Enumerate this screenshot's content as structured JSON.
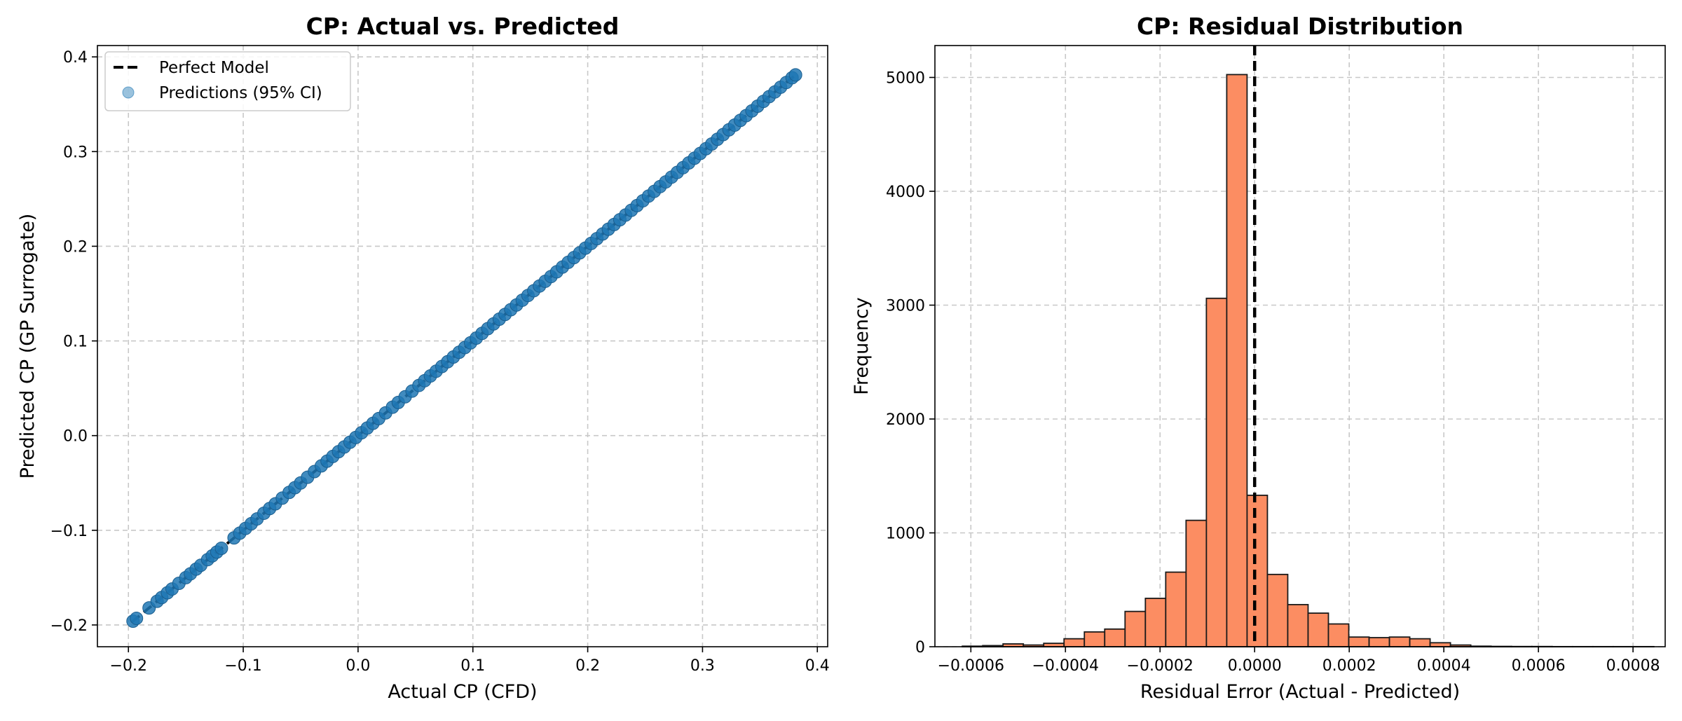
{
  "colors": {
    "scatter": "#1f77b4",
    "hist": "#fc8d62",
    "grid": "#c8c8c8",
    "reference_line": "#000000"
  },
  "chart_data": [
    {
      "type": "scatter",
      "title": "CP: Actual vs. Predicted",
      "xlabel": "Actual CP (CFD)",
      "ylabel": "Predicted CP (GP Surrogate)",
      "xlim": [
        -0.227,
        0.409
      ],
      "ylim": [
        -0.223,
        0.412
      ],
      "xticks": [
        -0.2,
        -0.1,
        0.0,
        0.1,
        0.2,
        0.3,
        0.4
      ],
      "xtick_labels": [
        "−0.2",
        "−0.1",
        "0.0",
        "0.1",
        "0.2",
        "0.3",
        "0.4"
      ],
      "yticks": [
        -0.2,
        -0.1,
        0.0,
        0.1,
        0.2,
        0.3,
        0.4
      ],
      "ytick_labels": [
        "−0.2",
        "−0.1",
        "0.0",
        "0.1",
        "0.2",
        "0.3",
        "0.4"
      ],
      "grid": true,
      "legend_position": "top-left",
      "legend": [
        "Perfect Model",
        "Predictions (95% CI)"
      ],
      "reference_line": {
        "name": "Perfect Model",
        "x": [
          -0.197,
          0.381
        ],
        "y": [
          -0.197,
          0.381
        ],
        "style": "dashed"
      },
      "series": [
        {
          "name": "Predictions (95% CI)",
          "note_points_lie_on_diagonal": true,
          "x": [
            -0.196,
            -0.193,
            -0.182,
            -0.175,
            -0.171,
            -0.166,
            -0.162,
            -0.156,
            -0.15,
            -0.146,
            -0.141,
            -0.137,
            -0.131,
            -0.127,
            -0.123,
            -0.119,
            -0.108,
            -0.103,
            -0.098,
            -0.093,
            -0.088,
            -0.082,
            -0.077,
            -0.072,
            -0.066,
            -0.06,
            -0.055,
            -0.05,
            -0.044,
            -0.038,
            -0.032,
            -0.027,
            -0.022,
            -0.017,
            -0.012,
            -0.007,
            -0.002,
            0.003,
            0.008,
            0.013,
            0.018,
            0.024,
            0.03,
            0.035,
            0.041,
            0.047,
            0.053,
            0.058,
            0.063,
            0.068,
            0.073,
            0.078,
            0.083,
            0.088,
            0.093,
            0.098,
            0.103,
            0.108,
            0.113,
            0.118,
            0.123,
            0.128,
            0.133,
            0.138,
            0.143,
            0.148,
            0.153,
            0.158,
            0.163,
            0.168,
            0.173,
            0.178,
            0.183,
            0.188,
            0.193,
            0.198,
            0.203,
            0.208,
            0.213,
            0.218,
            0.223,
            0.228,
            0.233,
            0.238,
            0.243,
            0.248,
            0.253,
            0.258,
            0.263,
            0.268,
            0.273,
            0.278,
            0.283,
            0.288,
            0.293,
            0.298,
            0.303,
            0.308,
            0.313,
            0.318,
            0.323,
            0.328,
            0.333,
            0.338,
            0.343,
            0.348,
            0.353,
            0.358,
            0.363,
            0.368,
            0.373,
            0.378,
            0.381
          ],
          "y": [
            -0.196,
            -0.193,
            -0.182,
            -0.175,
            -0.171,
            -0.166,
            -0.162,
            -0.156,
            -0.15,
            -0.146,
            -0.141,
            -0.137,
            -0.131,
            -0.127,
            -0.123,
            -0.119,
            -0.108,
            -0.103,
            -0.098,
            -0.093,
            -0.088,
            -0.082,
            -0.077,
            -0.072,
            -0.066,
            -0.06,
            -0.055,
            -0.05,
            -0.044,
            -0.038,
            -0.032,
            -0.027,
            -0.022,
            -0.017,
            -0.012,
            -0.007,
            -0.002,
            0.003,
            0.008,
            0.013,
            0.018,
            0.024,
            0.03,
            0.035,
            0.041,
            0.047,
            0.053,
            0.058,
            0.063,
            0.068,
            0.073,
            0.078,
            0.083,
            0.088,
            0.093,
            0.098,
            0.103,
            0.108,
            0.113,
            0.118,
            0.123,
            0.128,
            0.133,
            0.138,
            0.143,
            0.148,
            0.153,
            0.158,
            0.163,
            0.168,
            0.173,
            0.178,
            0.183,
            0.188,
            0.193,
            0.198,
            0.203,
            0.208,
            0.213,
            0.218,
            0.223,
            0.228,
            0.233,
            0.238,
            0.243,
            0.248,
            0.253,
            0.258,
            0.263,
            0.268,
            0.273,
            0.278,
            0.283,
            0.288,
            0.293,
            0.298,
            0.303,
            0.308,
            0.313,
            0.318,
            0.323,
            0.328,
            0.333,
            0.338,
            0.343,
            0.348,
            0.353,
            0.358,
            0.363,
            0.368,
            0.373,
            0.378,
            0.381
          ]
        }
      ]
    },
    {
      "type": "bar",
      "subtype": "histogram",
      "title": "CP: Residual Distribution",
      "xlabel": "Residual Error (Actual - Predicted)",
      "ylabel": "Frequency",
      "xlim": [
        -0.000676,
        0.000868
      ],
      "ylim": [
        0,
        5280
      ],
      "xticks": [
        -0.0006,
        -0.0004,
        -0.0002,
        0.0,
        0.0002,
        0.0004,
        0.0006,
        0.0008
      ],
      "xtick_labels": [
        "−0.0006",
        "−0.0004",
        "−0.0002",
        "0.0000",
        "0.0002",
        "0.0004",
        "0.0006",
        "0.0008"
      ],
      "yticks": [
        0,
        1000,
        2000,
        3000,
        4000,
        5000
      ],
      "ytick_labels": [
        "0",
        "1000",
        "2000",
        "3000",
        "4000",
        "5000"
      ],
      "grid": true,
      "reference_line": {
        "x": 0.0,
        "style": "dashed"
      },
      "bin_edges": [
        -0.000618,
        -0.000575,
        -0.000532,
        -0.000489,
        -0.000446,
        -0.000403,
        -0.00036,
        -0.000317,
        -0.000274,
        -0.000231,
        -0.000188,
        -0.000145,
        -0.000102,
        -5.9e-05,
        -1.6e-05,
        2.7e-05,
        7e-05,
        0.000113,
        0.000156,
        0.000199,
        0.000242,
        0.000285,
        0.000328,
        0.000371,
        0.000414,
        0.000457,
        0.0005,
        0.000543,
        0.000586,
        0.000629,
        0.000672,
        0.000715,
        0.000758,
        0.000801,
        0.000844
      ],
      "values": [
        5,
        10,
        25,
        15,
        30,
        70,
        130,
        155,
        310,
        425,
        655,
        1110,
        3060,
        5025,
        1330,
        635,
        370,
        295,
        200,
        85,
        80,
        85,
        70,
        35,
        15,
        5,
        3,
        2,
        2,
        1,
        1,
        1,
        1,
        1
      ]
    }
  ]
}
